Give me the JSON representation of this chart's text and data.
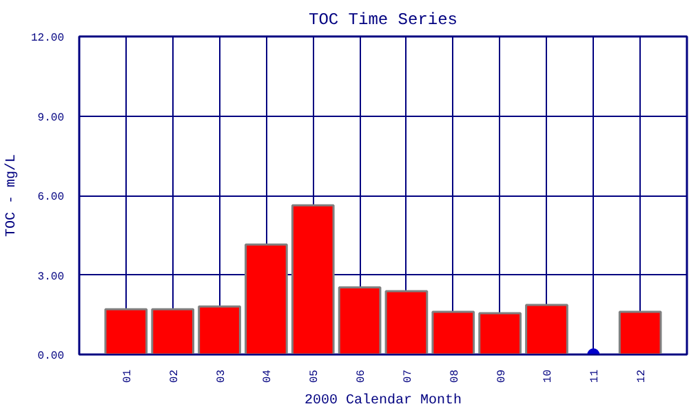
{
  "chart_data": {
    "type": "bar",
    "title": "TOC Time Series",
    "xlabel": "2000 Calendar Month",
    "ylabel": "TOC - mg/L",
    "categories": [
      "01",
      "02",
      "03",
      "04",
      "05",
      "06",
      "07",
      "08",
      "09",
      "10",
      "11",
      "12"
    ],
    "series": [
      {
        "color": "#ff0000",
        "values": [
          1.71,
          1.71,
          1.81,
          4.15,
          5.63,
          2.53,
          2.39,
          1.61,
          1.56,
          1.87,
          null,
          1.61
        ]
      },
      {
        "type": "scatter",
        "color": "#0000cc",
        "x": [
          "11"
        ],
        "values": [
          0
        ]
      }
    ],
    "ylim": [
      0,
      12
    ],
    "yticks": [
      {
        "value": 0,
        "label": "0.00"
      },
      {
        "value": 3,
        "label": "3.00"
      },
      {
        "value": 6,
        "label": "6.00"
      },
      {
        "value": 9,
        "label": "9.00"
      },
      {
        "value": 12,
        "label": "12.00"
      }
    ],
    "grid": true,
    "marker": "circle"
  }
}
